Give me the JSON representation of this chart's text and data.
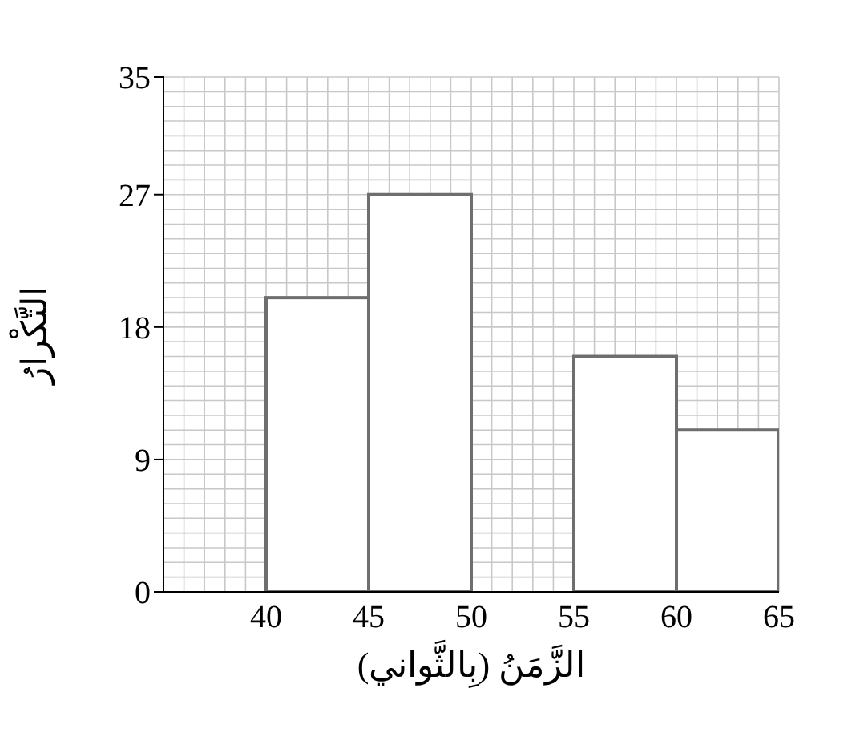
{
  "chart_data": {
    "type": "histogram",
    "xlabel": "الزَّمَنُ (بِالثَّواني)",
    "ylabel": "التَّكْرارُ",
    "bins": [
      40,
      45,
      50,
      55,
      60,
      65
    ],
    "values": [
      20,
      27,
      0,
      16,
      11
    ],
    "color": "#6e6e6e",
    "xlim": [
      35,
      65
    ],
    "xticks": [
      40,
      45,
      50,
      55,
      60,
      65
    ],
    "ylim": [
      0,
      35
    ],
    "yticks": [
      0,
      9,
      18,
      27,
      35
    ],
    "grid": true
  }
}
